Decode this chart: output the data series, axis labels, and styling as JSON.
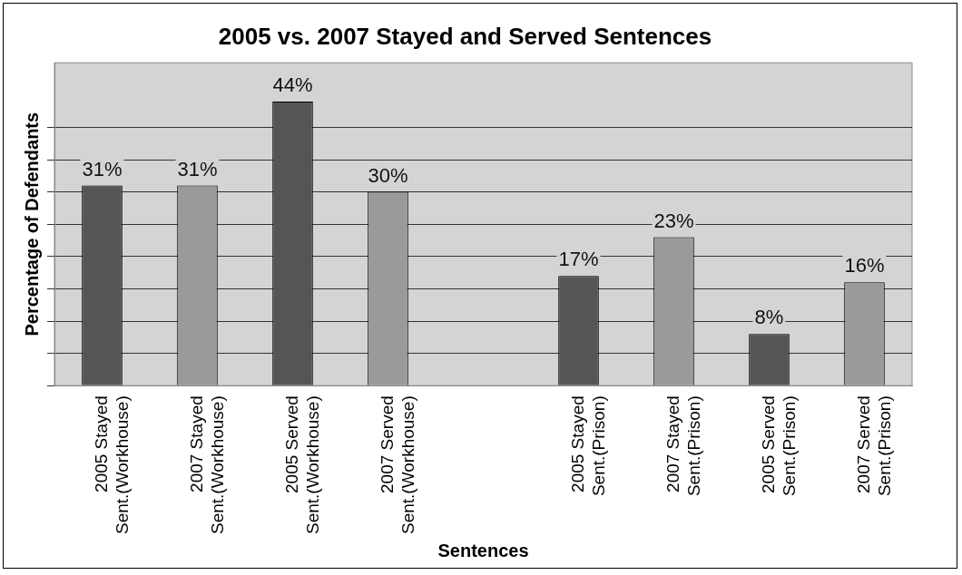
{
  "chart_data": {
    "type": "bar",
    "title": "2005 vs. 2007 Stayed and Served Sentences",
    "xlabel": "Sentences",
    "ylabel": "Percentage of Defendants",
    "categories": [
      "2005 Stayed Sent.(Workhouse)",
      "2007 Stayed Sent.(Workhouse)",
      "2005 Served Sent.(Workhouse)",
      "2007 Served Sent.(Workhouse)",
      null,
      "2005 Stayed Sent.(Prison)",
      "2007 Stayed Sent.(Prison)",
      "2005 Served Sent.(Prison)",
      "2007 Served Sent.(Prison)"
    ],
    "values": [
      31,
      31,
      44,
      30,
      null,
      17,
      23,
      8,
      16
    ],
    "value_labels": [
      "31%",
      "31%",
      "44%",
      "30%",
      null,
      "17%",
      "23%",
      "8%",
      "16%"
    ],
    "colors": [
      "#555555",
      "#9a9a9a",
      "#555555",
      "#9a9a9a",
      "#9a9a9a",
      "#555555",
      "#9a9a9a",
      "#555555",
      "#9a9a9a"
    ],
    "ylim": [
      0,
      50
    ],
    "yticks": [
      {
        "value": 0,
        "label": null
      },
      {
        "value": 5,
        "label": null
      },
      {
        "value": 10,
        "label": null
      },
      {
        "value": 15,
        "label": null
      },
      {
        "value": 20,
        "label": null
      },
      {
        "value": 25,
        "label": null
      },
      {
        "value": 30,
        "label": null
      },
      {
        "value": 35,
        "label": null
      },
      {
        "value": 40,
        "label": null
      }
    ],
    "tick_labels": "x",
    "grid": "y",
    "legend": false
  }
}
